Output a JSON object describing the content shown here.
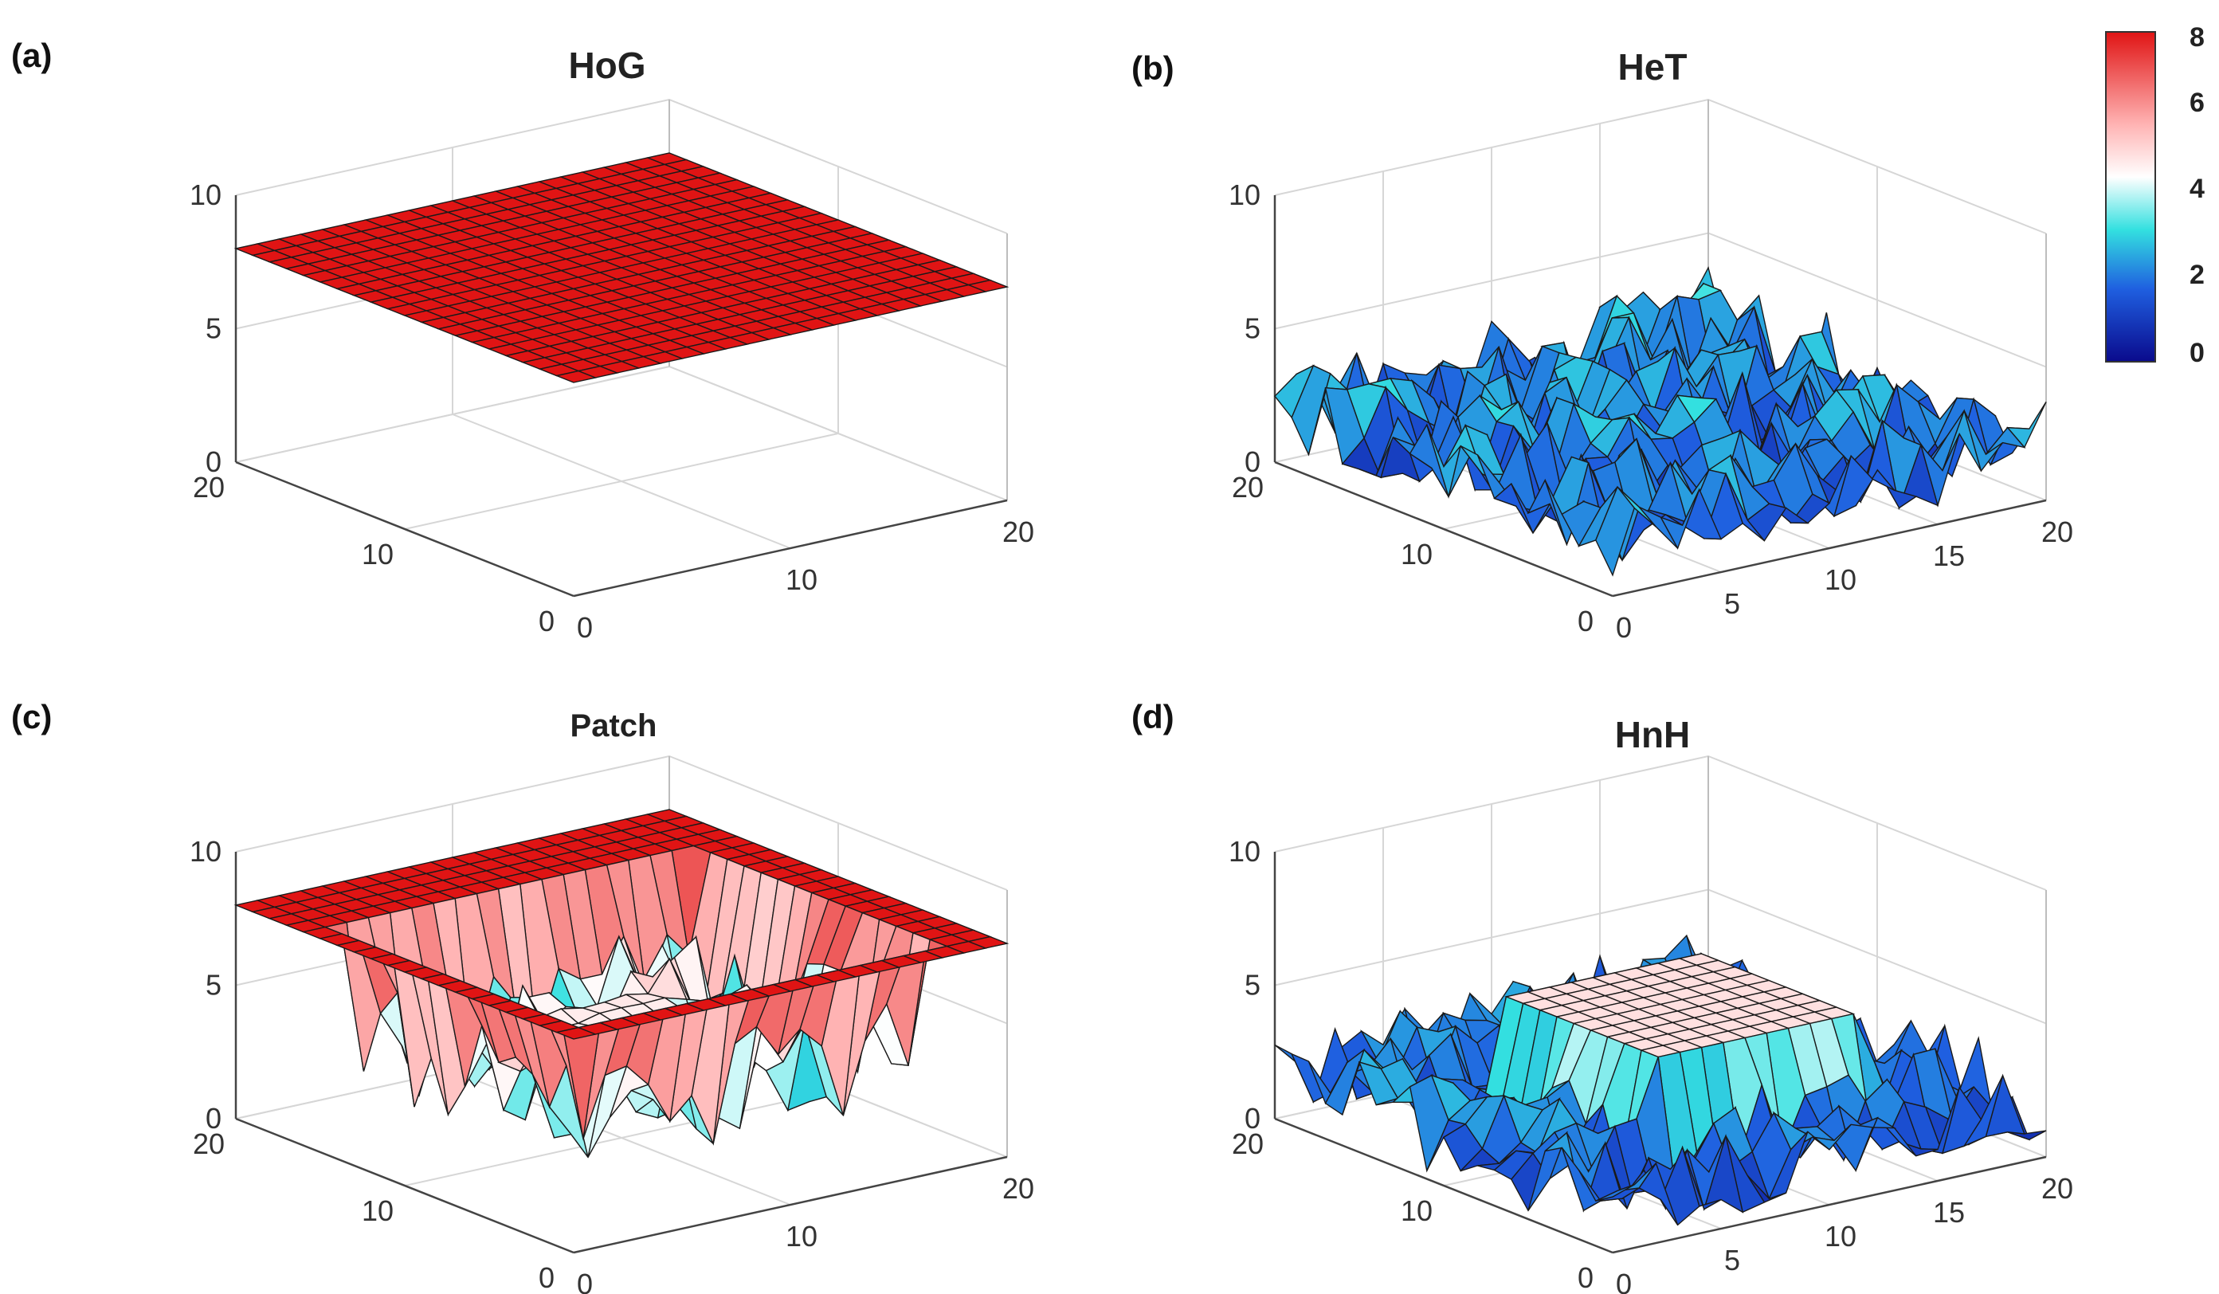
{
  "chart_data": [
    {
      "type": "surface3d",
      "panel_label": "(a)",
      "title": "HoG",
      "pattern": "homogeneous",
      "grid_size": 20,
      "zlim": [
        0,
        10
      ],
      "z_ticks": [
        "0",
        "5",
        "10"
      ],
      "x_ticks": [
        "0",
        "10",
        "20"
      ],
      "y_ticks": [
        "0",
        "10",
        "20"
      ],
      "z_level": 8
    },
    {
      "type": "surface3d",
      "panel_label": "(b)",
      "title": "HeT",
      "pattern": "heterogeneous",
      "grid_size": 20,
      "zlim": [
        0,
        10
      ],
      "z_ticks": [
        "0",
        "5",
        "10"
      ],
      "x_ticks": [
        "0",
        "5",
        "10",
        "15",
        "20"
      ],
      "y_ticks": [
        "0",
        "10",
        "20"
      ],
      "z_range_approx": [
        0,
        4
      ]
    },
    {
      "type": "surface3d",
      "panel_label": "(c)",
      "title": "Patch",
      "pattern": "patchy",
      "grid_size": 20,
      "zlim": [
        0,
        10
      ],
      "z_ticks": [
        "0",
        "5",
        "10"
      ],
      "x_ticks": [
        "0",
        "10",
        "20"
      ],
      "y_ticks": [
        "0",
        "10",
        "20"
      ],
      "z_high": 8,
      "z_low_range_approx": [
        2,
        6
      ]
    },
    {
      "type": "surface3d",
      "panel_label": "(d)",
      "title": "HnH",
      "pattern": "central-high-plateau",
      "grid_size": 20,
      "zlim": [
        0,
        10
      ],
      "z_ticks": [
        "0",
        "5",
        "10"
      ],
      "x_ticks": [
        "0",
        "5",
        "10",
        "15",
        "20"
      ],
      "y_ticks": [
        "0",
        "10",
        "20"
      ],
      "z_high": 5,
      "z_low_range_approx": [
        0,
        4
      ]
    }
  ],
  "colorbar": {
    "ticks": [
      "8",
      "6",
      "4",
      "2",
      "0"
    ],
    "range": [
      0,
      8
    ],
    "colors": {
      "min": "#0a0a8c",
      "low": "#1f5fe0",
      "mid": "#33e0e0",
      "white": "#ffffff",
      "pink": "#ffb3b3",
      "max": "#e01414"
    }
  }
}
